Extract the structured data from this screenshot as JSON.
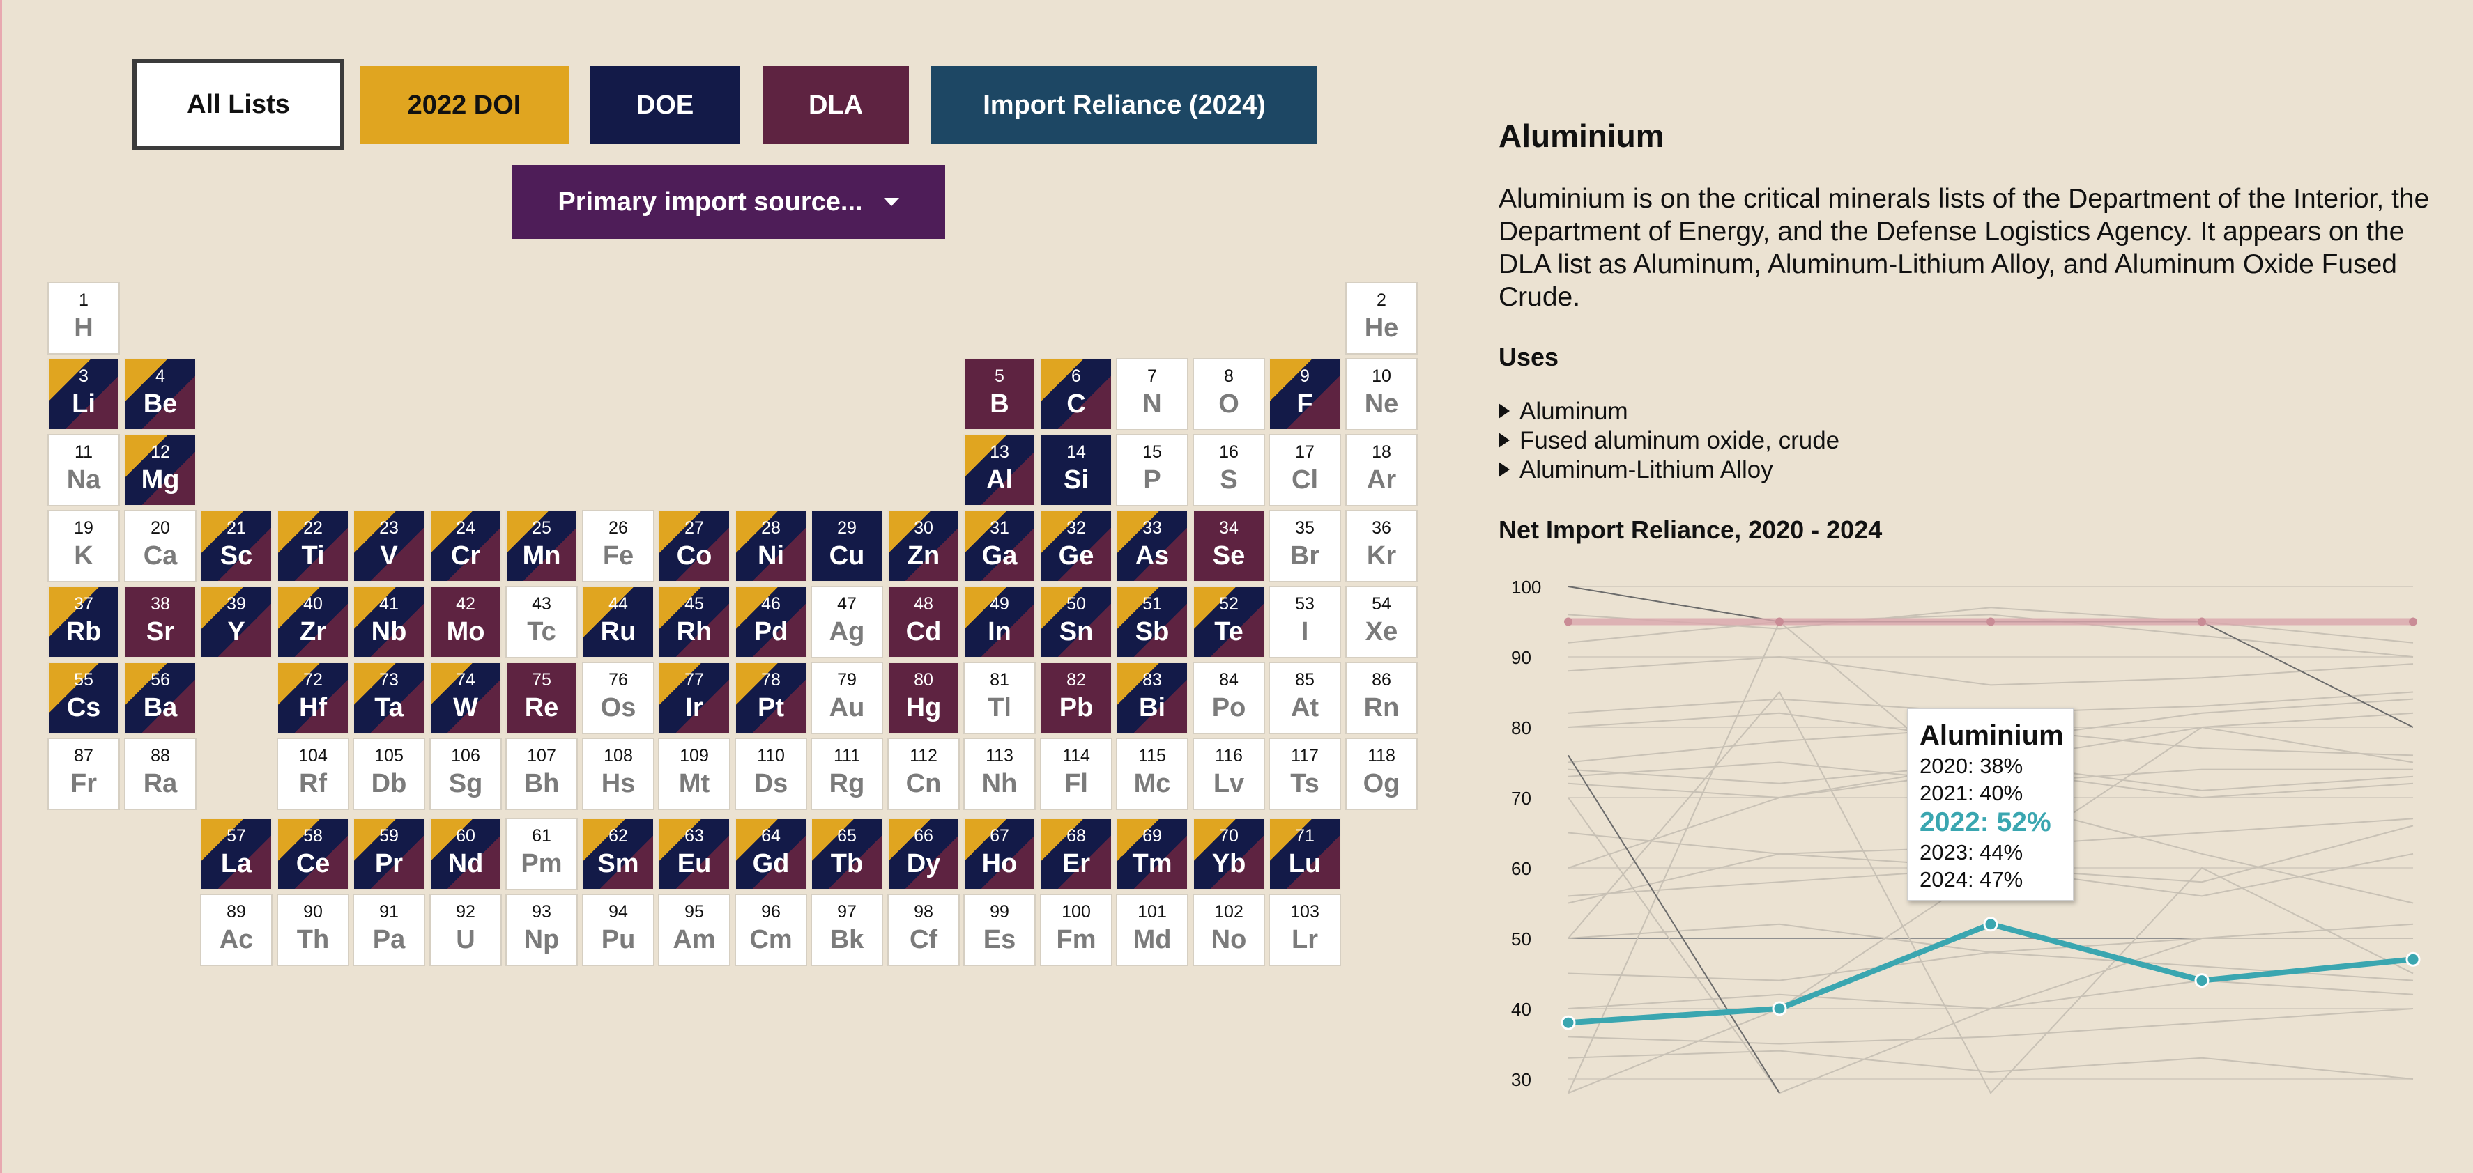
{
  "filters": {
    "all_label": "All Lists",
    "doi_label": "2022 DOI",
    "doe_label": "DOE",
    "dla_label": "DLA",
    "import_label": "Import Reliance (2024)",
    "source_label": "Primary import source..."
  },
  "colors": {
    "doi": "#e0a520",
    "doe": "#131a48",
    "dla": "#5e2341",
    "import": "#1d4764",
    "source": "#4e1d58",
    "highlight": "#3aa6b0",
    "background": "#ebe2d2"
  },
  "elements": [
    {
      "n": "1",
      "s": "H",
      "r": 1,
      "c": 1,
      "cls": "none"
    },
    {
      "n": "2",
      "s": "He",
      "r": 1,
      "c": 18,
      "cls": "none"
    },
    {
      "n": "3",
      "s": "Li",
      "r": 2,
      "c": 1,
      "cls": "c3"
    },
    {
      "n": "4",
      "s": "Be",
      "r": 2,
      "c": 2,
      "cls": "c3"
    },
    {
      "n": "5",
      "s": "B",
      "r": 2,
      "c": 13,
      "cls": "cdla"
    },
    {
      "n": "6",
      "s": "C",
      "r": 2,
      "c": 14,
      "cls": "c3"
    },
    {
      "n": "7",
      "s": "N",
      "r": 2,
      "c": 15,
      "cls": "none"
    },
    {
      "n": "8",
      "s": "O",
      "r": 2,
      "c": 16,
      "cls": "none"
    },
    {
      "n": "9",
      "s": "F",
      "r": 2,
      "c": 17,
      "cls": "c3"
    },
    {
      "n": "10",
      "s": "Ne",
      "r": 2,
      "c": 18,
      "cls": "none"
    },
    {
      "n": "11",
      "s": "Na",
      "r": 3,
      "c": 1,
      "cls": "none"
    },
    {
      "n": "12",
      "s": "Mg",
      "r": 3,
      "c": 2,
      "cls": "c3"
    },
    {
      "n": "13",
      "s": "Al",
      "r": 3,
      "c": 13,
      "cls": "c3"
    },
    {
      "n": "14",
      "s": "Si",
      "r": 3,
      "c": 14,
      "cls": "cdoe"
    },
    {
      "n": "15",
      "s": "P",
      "r": 3,
      "c": 15,
      "cls": "none"
    },
    {
      "n": "16",
      "s": "S",
      "r": 3,
      "c": 16,
      "cls": "none"
    },
    {
      "n": "17",
      "s": "Cl",
      "r": 3,
      "c": 17,
      "cls": "none"
    },
    {
      "n": "18",
      "s": "Ar",
      "r": 3,
      "c": 18,
      "cls": "none"
    },
    {
      "n": "19",
      "s": "K",
      "r": 4,
      "c": 1,
      "cls": "none"
    },
    {
      "n": "20",
      "s": "Ca",
      "r": 4,
      "c": 2,
      "cls": "none"
    },
    {
      "n": "21",
      "s": "Sc",
      "r": 4,
      "c": 3,
      "cls": "c3"
    },
    {
      "n": "22",
      "s": "Ti",
      "r": 4,
      "c": 4,
      "cls": "c3"
    },
    {
      "n": "23",
      "s": "V",
      "r": 4,
      "c": 5,
      "cls": "c3"
    },
    {
      "n": "24",
      "s": "Cr",
      "r": 4,
      "c": 6,
      "cls": "c3"
    },
    {
      "n": "25",
      "s": "Mn",
      "r": 4,
      "c": 7,
      "cls": "c3"
    },
    {
      "n": "26",
      "s": "Fe",
      "r": 4,
      "c": 8,
      "cls": "none"
    },
    {
      "n": "27",
      "s": "Co",
      "r": 4,
      "c": 9,
      "cls": "c3"
    },
    {
      "n": "28",
      "s": "Ni",
      "r": 4,
      "c": 10,
      "cls": "c3"
    },
    {
      "n": "29",
      "s": "Cu",
      "r": 4,
      "c": 11,
      "cls": "cdoe"
    },
    {
      "n": "30",
      "s": "Zn",
      "r": 4,
      "c": 12,
      "cls": "c3"
    },
    {
      "n": "31",
      "s": "Ga",
      "r": 4,
      "c": 13,
      "cls": "c3"
    },
    {
      "n": "32",
      "s": "Ge",
      "r": 4,
      "c": 14,
      "cls": "c3"
    },
    {
      "n": "33",
      "s": "As",
      "r": 4,
      "c": 15,
      "cls": "c3"
    },
    {
      "n": "34",
      "s": "Se",
      "r": 4,
      "c": 16,
      "cls": "cdla"
    },
    {
      "n": "35",
      "s": "Br",
      "r": 4,
      "c": 17,
      "cls": "none"
    },
    {
      "n": "36",
      "s": "Kr",
      "r": 4,
      "c": 18,
      "cls": "none"
    },
    {
      "n": "37",
      "s": "Rb",
      "r": 5,
      "c": 1,
      "cls": "c2"
    },
    {
      "n": "38",
      "s": "Sr",
      "r": 5,
      "c": 2,
      "cls": "cdla"
    },
    {
      "n": "39",
      "s": "Y",
      "r": 5,
      "c": 3,
      "cls": "c3"
    },
    {
      "n": "40",
      "s": "Zr",
      "r": 5,
      "c": 4,
      "cls": "c3"
    },
    {
      "n": "41",
      "s": "Nb",
      "r": 5,
      "c": 5,
      "cls": "c3"
    },
    {
      "n": "42",
      "s": "Mo",
      "r": 5,
      "c": 6,
      "cls": "cdla"
    },
    {
      "n": "43",
      "s": "Tc",
      "r": 5,
      "c": 7,
      "cls": "none"
    },
    {
      "n": "44",
      "s": "Ru",
      "r": 5,
      "c": 8,
      "cls": "c2"
    },
    {
      "n": "45",
      "s": "Rh",
      "r": 5,
      "c": 9,
      "cls": "c3"
    },
    {
      "n": "46",
      "s": "Pd",
      "r": 5,
      "c": 10,
      "cls": "c3"
    },
    {
      "n": "47",
      "s": "Ag",
      "r": 5,
      "c": 11,
      "cls": "none"
    },
    {
      "n": "48",
      "s": "Cd",
      "r": 5,
      "c": 12,
      "cls": "cdla"
    },
    {
      "n": "49",
      "s": "In",
      "r": 5,
      "c": 13,
      "cls": "c3"
    },
    {
      "n": "50",
      "s": "Sn",
      "r": 5,
      "c": 14,
      "cls": "c3"
    },
    {
      "n": "51",
      "s": "Sb",
      "r": 5,
      "c": 15,
      "cls": "c3"
    },
    {
      "n": "52",
      "s": "Te",
      "r": 5,
      "c": 16,
      "cls": "c3"
    },
    {
      "n": "53",
      "s": "I",
      "r": 5,
      "c": 17,
      "cls": "none"
    },
    {
      "n": "54",
      "s": "Xe",
      "r": 5,
      "c": 18,
      "cls": "none"
    },
    {
      "n": "55",
      "s": "Cs",
      "r": 6,
      "c": 1,
      "cls": "c2"
    },
    {
      "n": "56",
      "s": "Ba",
      "r": 6,
      "c": 2,
      "cls": "c3"
    },
    {
      "n": "72",
      "s": "Hf",
      "r": 6,
      "c": 4,
      "cls": "c3"
    },
    {
      "n": "73",
      "s": "Ta",
      "r": 6,
      "c": 5,
      "cls": "c3"
    },
    {
      "n": "74",
      "s": "W",
      "r": 6,
      "c": 6,
      "cls": "c3"
    },
    {
      "n": "75",
      "s": "Re",
      "r": 6,
      "c": 7,
      "cls": "cdla"
    },
    {
      "n": "76",
      "s": "Os",
      "r": 6,
      "c": 8,
      "cls": "none"
    },
    {
      "n": "77",
      "s": "Ir",
      "r": 6,
      "c": 9,
      "cls": "c3"
    },
    {
      "n": "78",
      "s": "Pt",
      "r": 6,
      "c": 10,
      "cls": "c3"
    },
    {
      "n": "79",
      "s": "Au",
      "r": 6,
      "c": 11,
      "cls": "none"
    },
    {
      "n": "80",
      "s": "Hg",
      "r": 6,
      "c": 12,
      "cls": "cdla"
    },
    {
      "n": "81",
      "s": "Tl",
      "r": 6,
      "c": 13,
      "cls": "none"
    },
    {
      "n": "82",
      "s": "Pb",
      "r": 6,
      "c": 14,
      "cls": "cdla"
    },
    {
      "n": "83",
      "s": "Bi",
      "r": 6,
      "c": 15,
      "cls": "c3"
    },
    {
      "n": "84",
      "s": "Po",
      "r": 6,
      "c": 16,
      "cls": "none"
    },
    {
      "n": "85",
      "s": "At",
      "r": 6,
      "c": 17,
      "cls": "none"
    },
    {
      "n": "86",
      "s": "Rn",
      "r": 6,
      "c": 18,
      "cls": "none"
    },
    {
      "n": "87",
      "s": "Fr",
      "r": 7,
      "c": 1,
      "cls": "none"
    },
    {
      "n": "88",
      "s": "Ra",
      "r": 7,
      "c": 2,
      "cls": "none"
    },
    {
      "n": "104",
      "s": "Rf",
      "r": 7,
      "c": 4,
      "cls": "none"
    },
    {
      "n": "105",
      "s": "Db",
      "r": 7,
      "c": 5,
      "cls": "none"
    },
    {
      "n": "106",
      "s": "Sg",
      "r": 7,
      "c": 6,
      "cls": "none"
    },
    {
      "n": "107",
      "s": "Bh",
      "r": 7,
      "c": 7,
      "cls": "none"
    },
    {
      "n": "108",
      "s": "Hs",
      "r": 7,
      "c": 8,
      "cls": "none"
    },
    {
      "n": "109",
      "s": "Mt",
      "r": 7,
      "c": 9,
      "cls": "none"
    },
    {
      "n": "110",
      "s": "Ds",
      "r": 7,
      "c": 10,
      "cls": "none"
    },
    {
      "n": "111",
      "s": "Rg",
      "r": 7,
      "c": 11,
      "cls": "none"
    },
    {
      "n": "112",
      "s": "Cn",
      "r": 7,
      "c": 12,
      "cls": "none"
    },
    {
      "n": "113",
      "s": "Nh",
      "r": 7,
      "c": 13,
      "cls": "none"
    },
    {
      "n": "114",
      "s": "Fl",
      "r": 7,
      "c": 14,
      "cls": "none"
    },
    {
      "n": "115",
      "s": "Mc",
      "r": 7,
      "c": 15,
      "cls": "none"
    },
    {
      "n": "116",
      "s": "Lv",
      "r": 7,
      "c": 16,
      "cls": "none"
    },
    {
      "n": "117",
      "s": "Ts",
      "r": 7,
      "c": 17,
      "cls": "none"
    },
    {
      "n": "118",
      "s": "Og",
      "r": 7,
      "c": 18,
      "cls": "none"
    },
    {
      "n": "57",
      "s": "La",
      "r": 8,
      "c": 3,
      "cls": "c3"
    },
    {
      "n": "58",
      "s": "Ce",
      "r": 8,
      "c": 4,
      "cls": "c3"
    },
    {
      "n": "59",
      "s": "Pr",
      "r": 8,
      "c": 5,
      "cls": "c3"
    },
    {
      "n": "60",
      "s": "Nd",
      "r": 8,
      "c": 6,
      "cls": "c3"
    },
    {
      "n": "61",
      "s": "Pm",
      "r": 8,
      "c": 7,
      "cls": "none"
    },
    {
      "n": "62",
      "s": "Sm",
      "r": 8,
      "c": 8,
      "cls": "c3"
    },
    {
      "n": "63",
      "s": "Eu",
      "r": 8,
      "c": 9,
      "cls": "c3"
    },
    {
      "n": "64",
      "s": "Gd",
      "r": 8,
      "c": 10,
      "cls": "c3"
    },
    {
      "n": "65",
      "s": "Tb",
      "r": 8,
      "c": 11,
      "cls": "c3"
    },
    {
      "n": "66",
      "s": "Dy",
      "r": 8,
      "c": 12,
      "cls": "c3"
    },
    {
      "n": "67",
      "s": "Ho",
      "r": 8,
      "c": 13,
      "cls": "c3"
    },
    {
      "n": "68",
      "s": "Er",
      "r": 8,
      "c": 14,
      "cls": "c3"
    },
    {
      "n": "69",
      "s": "Tm",
      "r": 8,
      "c": 15,
      "cls": "c3"
    },
    {
      "n": "70",
      "s": "Yb",
      "r": 8,
      "c": 16,
      "cls": "c3"
    },
    {
      "n": "71",
      "s": "Lu",
      "r": 8,
      "c": 17,
      "cls": "c3"
    },
    {
      "n": "89",
      "s": "Ac",
      "r": 9,
      "c": 3,
      "cls": "none"
    },
    {
      "n": "90",
      "s": "Th",
      "r": 9,
      "c": 4,
      "cls": "none"
    },
    {
      "n": "91",
      "s": "Pa",
      "r": 9,
      "c": 5,
      "cls": "none"
    },
    {
      "n": "92",
      "s": "U",
      "r": 9,
      "c": 6,
      "cls": "none"
    },
    {
      "n": "93",
      "s": "Np",
      "r": 9,
      "c": 7,
      "cls": "none"
    },
    {
      "n": "94",
      "s": "Pu",
      "r": 9,
      "c": 8,
      "cls": "none"
    },
    {
      "n": "95",
      "s": "Am",
      "r": 9,
      "c": 9,
      "cls": "none"
    },
    {
      "n": "96",
      "s": "Cm",
      "r": 9,
      "c": 10,
      "cls": "none"
    },
    {
      "n": "97",
      "s": "Bk",
      "r": 9,
      "c": 11,
      "cls": "none"
    },
    {
      "n": "98",
      "s": "Cf",
      "r": 9,
      "c": 12,
      "cls": "none"
    },
    {
      "n": "99",
      "s": "Es",
      "r": 9,
      "c": 13,
      "cls": "none"
    },
    {
      "n": "100",
      "s": "Fm",
      "r": 9,
      "c": 14,
      "cls": "none"
    },
    {
      "n": "101",
      "s": "Md",
      "r": 9,
      "c": 15,
      "cls": "none"
    },
    {
      "n": "102",
      "s": "No",
      "r": 9,
      "c": 16,
      "cls": "none"
    },
    {
      "n": "103",
      "s": "Lr",
      "r": 9,
      "c": 17,
      "cls": "none"
    }
  ],
  "detail": {
    "title": "Aluminium",
    "description": "Aluminium is on the critical minerals lists of the Department of the Interior, the Department of Energy, and the Defense Logistics Agency. It appears on the DLA list as Aluminum, Aluminum-Lithium Alloy, and Aluminum Oxide Fused Crude.",
    "uses_heading": "Uses",
    "uses": [
      "Aluminum",
      "Fused aluminum oxide, crude",
      "Aluminum-Lithium Alloy"
    ],
    "chart_title": "Net Import Reliance, 2020 - 2024"
  },
  "tooltip": {
    "name": "Aluminium",
    "lines": [
      "2020: 38%",
      "2021: 40%",
      "2022: 52%",
      "2023: 44%",
      "2024: 47%"
    ],
    "highlight_index": 2
  },
  "chart_data": {
    "type": "line",
    "title": "Net Import Reliance, 2020 - 2024",
    "x": [
      2020,
      2021,
      2022,
      2023,
      2024
    ],
    "ylim": [
      28,
      100
    ],
    "yticks": [
      30,
      40,
      50,
      60,
      70,
      80,
      90,
      100
    ],
    "grid": true,
    "highlight": {
      "name": "Aluminium",
      "values": [
        38,
        40,
        52,
        44,
        47
      ],
      "color": "#3aa6b0"
    },
    "reference": {
      "values": [
        95,
        95,
        95,
        95,
        95
      ],
      "color": "#d9a6ad"
    },
    "dark_lines": [
      [
        100,
        95,
        95,
        95,
        80
      ],
      [
        76,
        28,
        null,
        null,
        null
      ]
    ],
    "background_series": [
      [
        75,
        78,
        80,
        77,
        76
      ],
      [
        74,
        72,
        75,
        71,
        73
      ],
      [
        73,
        75,
        72,
        74,
        74
      ],
      [
        72,
        70,
        74,
        70,
        72
      ],
      [
        80,
        82,
        78,
        82,
        84
      ],
      [
        82,
        84,
        82,
        83,
        85
      ],
      [
        88,
        90,
        86,
        87,
        89
      ],
      [
        92,
        95,
        96,
        93,
        90
      ],
      [
        96,
        94,
        97,
        95,
        92
      ],
      [
        65,
        62,
        60,
        58,
        66
      ],
      [
        56,
        58,
        60,
        56,
        62
      ],
      [
        50,
        52,
        48,
        50,
        50
      ],
      [
        45,
        44,
        48,
        46,
        44
      ],
      [
        40,
        42,
        40,
        44,
        42
      ],
      [
        36,
        35,
        36,
        38,
        40
      ],
      [
        33,
        34,
        31,
        33,
        30
      ],
      [
        28,
        95,
        70,
        62,
        55
      ],
      [
        70,
        28,
        40,
        50,
        52
      ],
      [
        50,
        85,
        28,
        60,
        45
      ],
      [
        28,
        40,
        60,
        80,
        75
      ],
      [
        60,
        70,
        75,
        80,
        82
      ],
      [
        55,
        62,
        63,
        65,
        67
      ]
    ]
  }
}
